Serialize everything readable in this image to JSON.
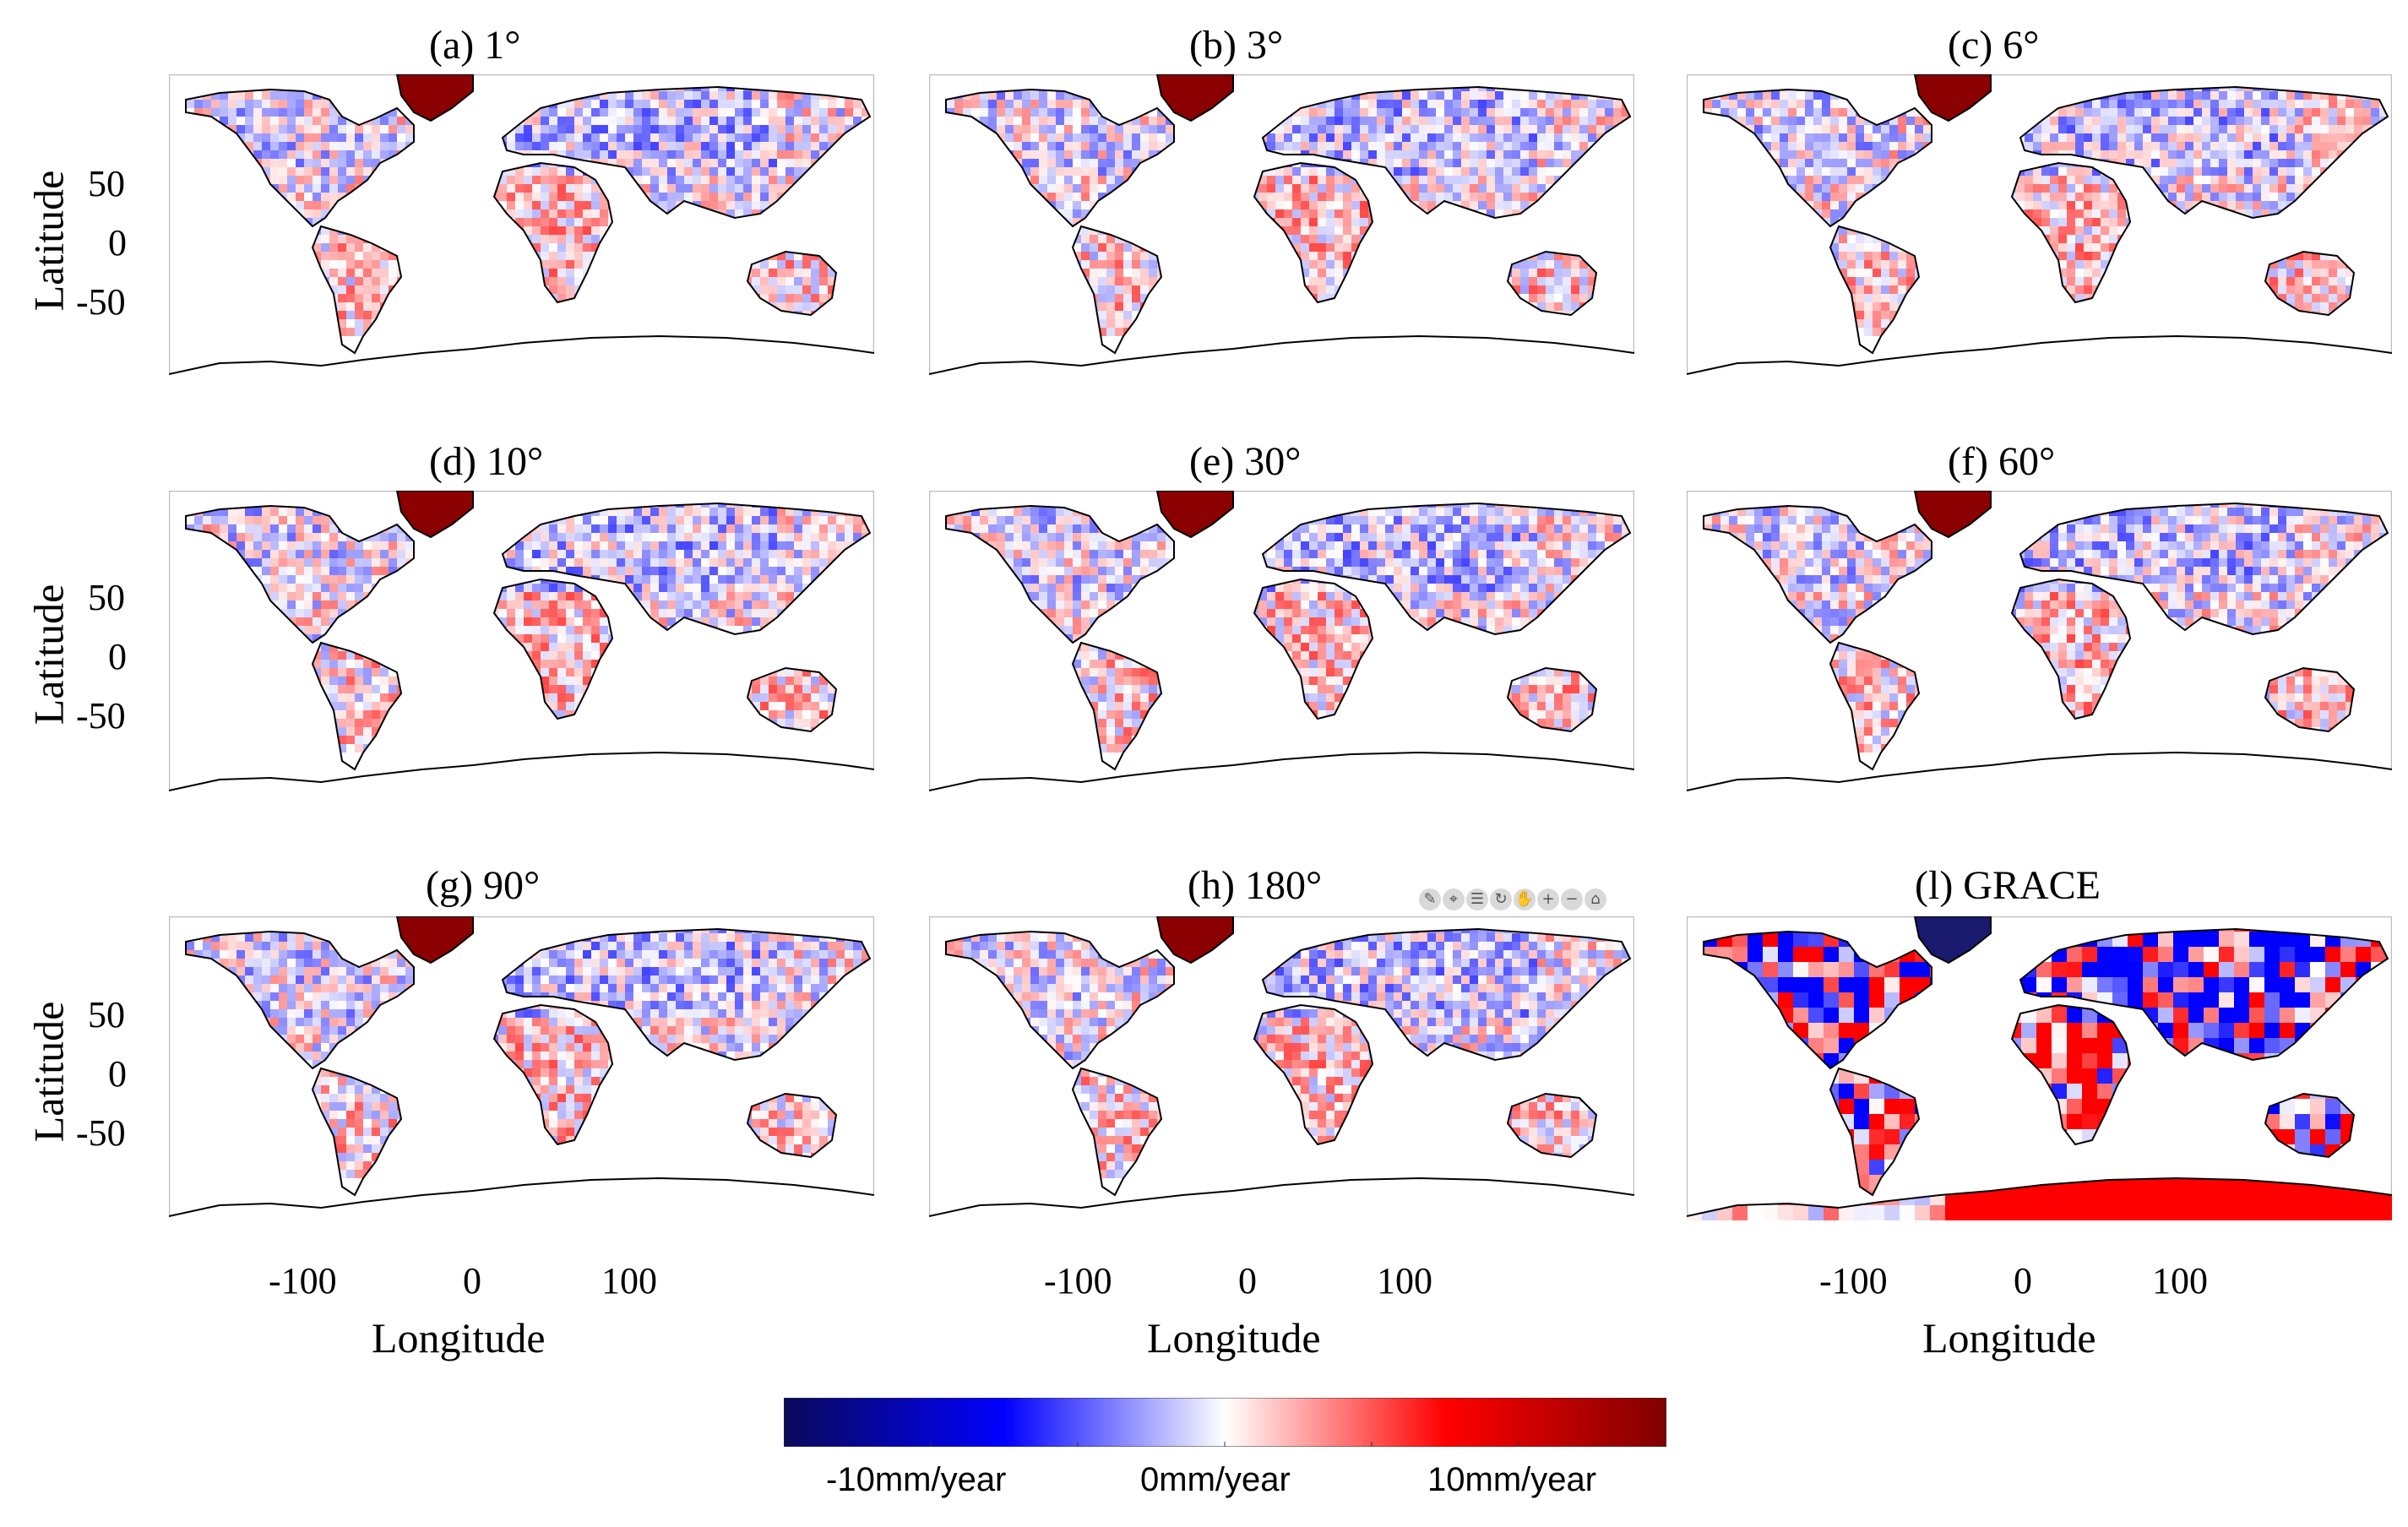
{
  "panels": [
    {
      "title": "(a) 1°"
    },
    {
      "title": "(b) 3°"
    },
    {
      "title": "(c) 6°"
    },
    {
      "title": "(d) 10°"
    },
    {
      "title": "(e) 30°"
    },
    {
      "title": "(f) 60°"
    },
    {
      "title": "(g) 90°"
    },
    {
      "title": "(h) 180°"
    },
    {
      "title": "(l) GRACE"
    }
  ],
  "axes": {
    "ylabel": "Latitude",
    "xlabel": "Longitude",
    "yticks": [
      "50",
      "0",
      "-50"
    ],
    "xticks": [
      "-100",
      "0",
      "100"
    ]
  },
  "colorbar": {
    "labels": [
      "-10mm/year",
      "0mm/year",
      "10mm/year"
    ],
    "colors": [
      "#0a0a5a",
      "#0000ff",
      "#ffffff",
      "#ff0000",
      "#800000"
    ]
  },
  "toolbar_icons": [
    "brush-icon",
    "data-tip-icon",
    "legend-icon",
    "rotate-icon",
    "pan-icon",
    "zoom-in-icon",
    "zoom-out-icon",
    "home-icon"
  ],
  "style": {
    "coastline": "#000000",
    "positive": "#ff0000",
    "negative": "#0000ff",
    "greenland": "#8b0000"
  }
}
